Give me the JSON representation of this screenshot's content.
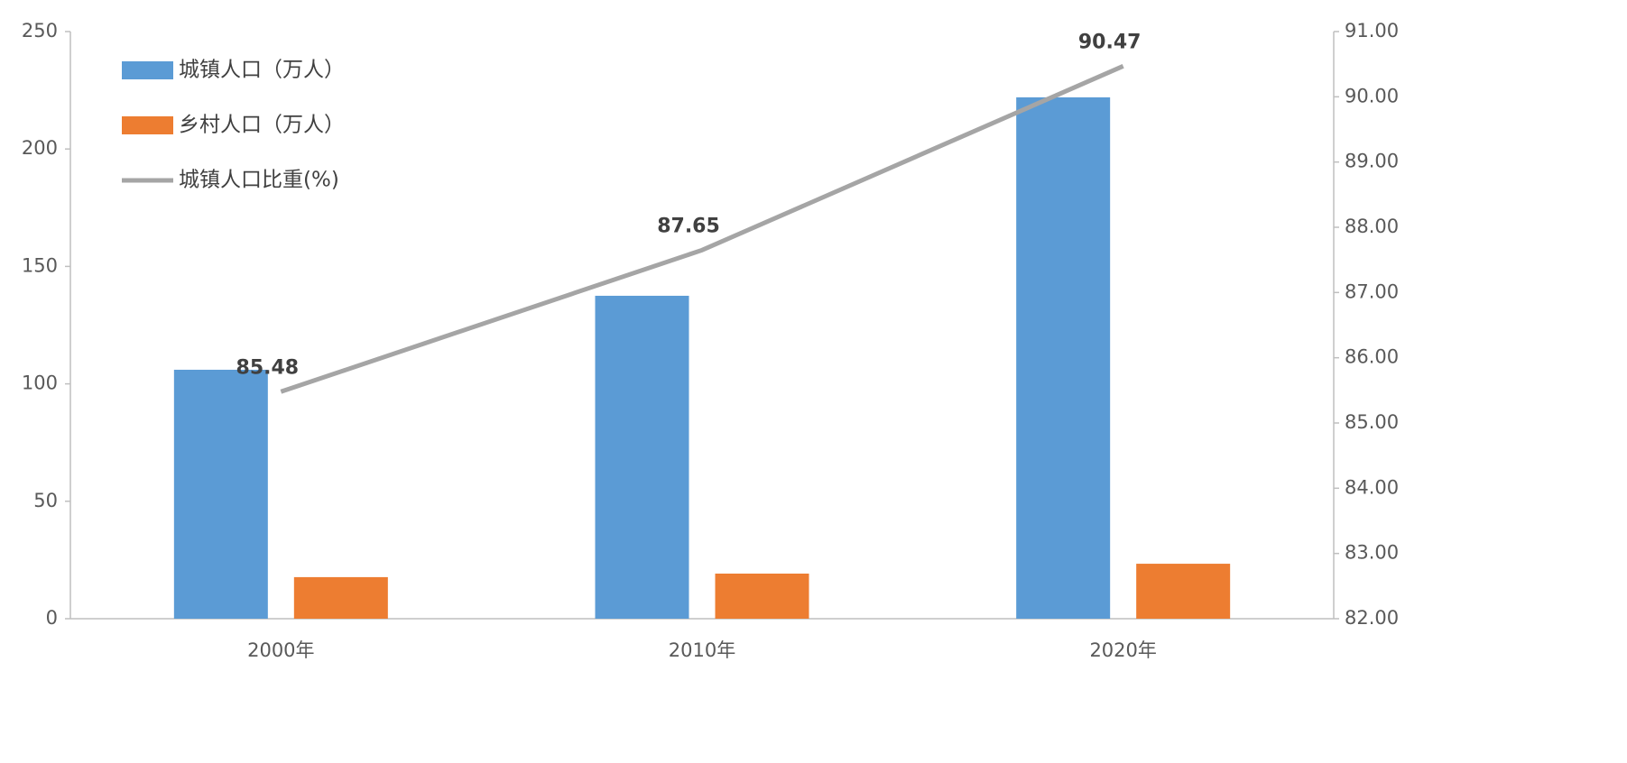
{
  "chart_data": {
    "type": "bar_line",
    "categories": [
      "2000年",
      "2010年",
      "2020年"
    ],
    "series": [
      {
        "name": "城镇人口（万人）",
        "type": "bar",
        "color": "#5b9bd5",
        "values": [
          106,
          137.5,
          222
        ]
      },
      {
        "name": "乡村人口（万人）",
        "type": "bar",
        "color": "#ed7d31",
        "values": [
          17.7,
          19.2,
          23.4
        ]
      },
      {
        "name": "城镇人口比重(%)",
        "type": "line",
        "axis": "y2",
        "color": "#a5a5a5",
        "values": [
          85.48,
          87.65,
          90.47
        ]
      }
    ],
    "ylim": [
      0,
      250
    ],
    "yticks": [
      0,
      50,
      100,
      150,
      200,
      250
    ],
    "y2lim": [
      82,
      91
    ],
    "y2ticks": [
      {
        "value": 82,
        "label": "82.00"
      },
      {
        "value": 83,
        "label": "83.00"
      },
      {
        "value": 84,
        "label": "84.00"
      },
      {
        "value": 85,
        "label": "85.00"
      },
      {
        "value": 86,
        "label": "86.00"
      },
      {
        "value": 87,
        "label": "87.00"
      },
      {
        "value": 88,
        "label": "88.00"
      },
      {
        "value": 89,
        "label": "89.00"
      },
      {
        "value": 90,
        "label": "90.00"
      },
      {
        "value": 91,
        "label": "91.00"
      }
    ],
    "grid": false,
    "legend": "upper-left"
  }
}
